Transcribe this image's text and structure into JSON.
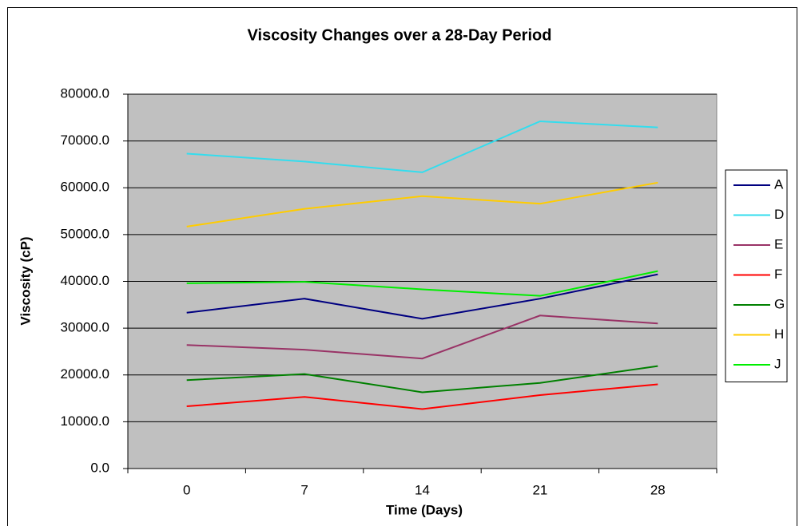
{
  "chart_data": {
    "type": "line",
    "title": "Viscosity Changes over a 28-Day Period",
    "x_label": "Time (Days)",
    "y_label": "Viscosity (cP)",
    "categories": [
      "0",
      "7",
      "14",
      "21",
      "28"
    ],
    "series": [
      {
        "name": "A",
        "color": "#000080",
        "values": [
          33300,
          36300,
          32000,
          36300,
          41500
        ]
      },
      {
        "name": "D",
        "color": "#33ddee",
        "values": [
          67300,
          65600,
          63300,
          74200,
          72900
        ]
      },
      {
        "name": "E",
        "color": "#993366",
        "values": [
          26400,
          25400,
          23500,
          32700,
          31000
        ]
      },
      {
        "name": "F",
        "color": "#ff0000",
        "values": [
          13300,
          15300,
          12700,
          15700,
          18000
        ]
      },
      {
        "name": "G",
        "color": "#008000",
        "values": [
          18900,
          20200,
          16300,
          18300,
          21900
        ]
      },
      {
        "name": "H",
        "color": "#ffcc00",
        "values": [
          51700,
          55500,
          58200,
          56600,
          61100
        ]
      },
      {
        "name": "J",
        "color": "#00ee00",
        "values": [
          39600,
          39900,
          38300,
          36900,
          42200
        ]
      }
    ],
    "ylim": [
      0,
      80000
    ],
    "yticks": [
      {
        "value": 0,
        "label": "0.0"
      },
      {
        "value": 10000,
        "label": "10000.0"
      },
      {
        "value": 20000,
        "label": "20000.0"
      },
      {
        "value": 30000,
        "label": "30000.0"
      },
      {
        "value": 40000,
        "label": "40000.0"
      },
      {
        "value": 50000,
        "label": "50000.0"
      },
      {
        "value": 60000,
        "label": "60000.0"
      },
      {
        "value": 70000,
        "label": "70000.0"
      },
      {
        "value": 80000,
        "label": "80000.0"
      }
    ],
    "grid": true,
    "plot_background": "#c0c0c0",
    "legend": "right"
  }
}
